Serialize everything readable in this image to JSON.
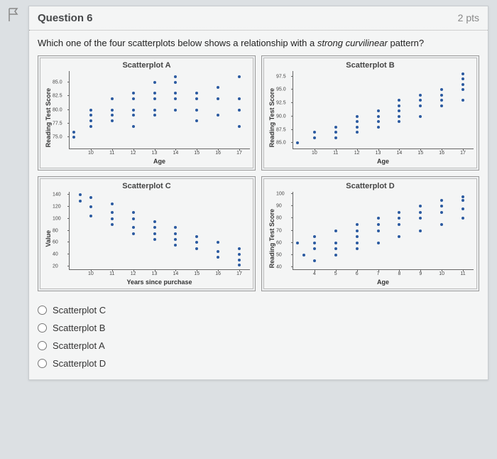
{
  "question": {
    "title": "Question 6",
    "points": "2 pts",
    "prompt_html": "Which one of the four scatterplots below shows a relationship with a <em>strong curvilinear</em> pattern?"
  },
  "point_color": "#2b5aa0",
  "plots": [
    {
      "title": "Scatterplot A",
      "ylabel": "Reading Test Score",
      "xlabel": "Age",
      "xlim": [
        9,
        17.5
      ],
      "ylim": [
        73,
        87
      ],
      "yticks": [
        75,
        77.5,
        80,
        82.5,
        85
      ],
      "ytick_labels": [
        "75.0",
        "77.5",
        "80.0",
        "82.5",
        "85.0"
      ],
      "xticks": [
        10,
        11,
        12,
        13,
        14,
        15,
        16,
        17
      ],
      "data": [
        [
          9.2,
          75
        ],
        [
          9.2,
          76
        ],
        [
          10,
          77
        ],
        [
          10,
          78
        ],
        [
          10,
          79
        ],
        [
          10,
          80
        ],
        [
          11,
          78
        ],
        [
          11,
          79
        ],
        [
          11,
          80
        ],
        [
          11,
          82
        ],
        [
          12,
          77
        ],
        [
          12,
          79
        ],
        [
          12,
          80
        ],
        [
          12,
          82
        ],
        [
          12,
          83
        ],
        [
          13,
          79
        ],
        [
          13,
          80
        ],
        [
          13,
          82
        ],
        [
          13,
          83
        ],
        [
          13,
          85
        ],
        [
          14,
          80
        ],
        [
          14,
          82
        ],
        [
          14,
          83
        ],
        [
          14,
          85
        ],
        [
          14,
          86
        ],
        [
          15,
          78
        ],
        [
          15,
          80
        ],
        [
          15,
          82
        ],
        [
          15,
          83
        ],
        [
          16,
          79
        ],
        [
          16,
          82
        ],
        [
          16,
          84
        ],
        [
          17,
          77
        ],
        [
          17,
          80
        ],
        [
          17,
          82
        ],
        [
          17,
          86
        ]
      ]
    },
    {
      "title": "Scatterplot B",
      "ylabel": "Reading Test Score",
      "xlabel": "Age",
      "xlim": [
        9,
        17.5
      ],
      "ylim": [
        84,
        98.5
      ],
      "yticks": [
        85,
        87.5,
        90,
        92.5,
        95,
        97.5
      ],
      "ytick_labels": [
        "85.0",
        "87.5",
        "90.0",
        "92.5",
        "95.0",
        "97.5"
      ],
      "xticks": [
        10,
        11,
        12,
        13,
        14,
        15,
        16,
        17
      ],
      "data": [
        [
          9.2,
          85
        ],
        [
          10,
          86
        ],
        [
          10,
          87
        ],
        [
          11,
          86
        ],
        [
          11,
          87
        ],
        [
          11,
          88
        ],
        [
          12,
          87
        ],
        [
          12,
          88
        ],
        [
          12,
          89
        ],
        [
          12,
          90
        ],
        [
          13,
          88
        ],
        [
          13,
          89
        ],
        [
          13,
          90
        ],
        [
          13,
          91
        ],
        [
          14,
          89
        ],
        [
          14,
          90
        ],
        [
          14,
          91
        ],
        [
          14,
          92
        ],
        [
          14,
          93
        ],
        [
          15,
          90
        ],
        [
          15,
          92
        ],
        [
          15,
          93
        ],
        [
          15,
          94
        ],
        [
          16,
          92
        ],
        [
          16,
          93
        ],
        [
          16,
          94
        ],
        [
          16,
          95
        ],
        [
          17,
          93
        ],
        [
          17,
          95
        ],
        [
          17,
          96
        ],
        [
          17,
          97
        ],
        [
          17,
          98
        ]
      ]
    },
    {
      "title": "Scatterplot C",
      "ylabel": "Value",
      "xlabel": "Years since purchase",
      "xlim": [
        9,
        17.5
      ],
      "ylim": [
        15,
        145
      ],
      "yticks": [
        20,
        40,
        60,
        80,
        100,
        120,
        140
      ],
      "ytick_labels": [
        "20",
        "40",
        "60",
        "80",
        "100",
        "120",
        "140"
      ],
      "xticks": [
        10,
        11,
        12,
        13,
        14,
        15,
        16,
        17
      ],
      "data": [
        [
          9.5,
          140
        ],
        [
          9.5,
          130
        ],
        [
          10,
          135
        ],
        [
          10,
          120
        ],
        [
          10,
          105
        ],
        [
          11,
          125
        ],
        [
          11,
          110
        ],
        [
          11,
          100
        ],
        [
          11,
          90
        ],
        [
          12,
          110
        ],
        [
          12,
          100
        ],
        [
          12,
          85
        ],
        [
          12,
          75
        ],
        [
          13,
          95
        ],
        [
          13,
          85
        ],
        [
          13,
          75
        ],
        [
          13,
          65
        ],
        [
          14,
          85
        ],
        [
          14,
          75
        ],
        [
          14,
          65
        ],
        [
          14,
          55
        ],
        [
          15,
          70
        ],
        [
          15,
          60
        ],
        [
          15,
          50
        ],
        [
          16,
          60
        ],
        [
          16,
          45
        ],
        [
          16,
          35
        ],
        [
          17,
          50
        ],
        [
          17,
          40
        ],
        [
          17,
          30
        ],
        [
          17,
          22
        ]
      ]
    },
    {
      "title": "Scatterplot D",
      "ylabel": "Reading Test Score",
      "xlabel": "Age",
      "xlim": [
        3,
        11.5
      ],
      "ylim": [
        38,
        102
      ],
      "yticks": [
        40,
        50,
        60,
        70,
        80,
        90,
        100
      ],
      "ytick_labels": [
        "40",
        "50",
        "60",
        "70",
        "80",
        "90",
        "100"
      ],
      "xticks": [
        4,
        5,
        6,
        7,
        8,
        9,
        10,
        11
      ],
      "data": [
        [
          3.2,
          60
        ],
        [
          3.5,
          50
        ],
        [
          4,
          55
        ],
        [
          4,
          60
        ],
        [
          4,
          65
        ],
        [
          4,
          45
        ],
        [
          5,
          55
        ],
        [
          5,
          60
        ],
        [
          5,
          70
        ],
        [
          5,
          50
        ],
        [
          6,
          55
        ],
        [
          6,
          60
        ],
        [
          6,
          65
        ],
        [
          6,
          70
        ],
        [
          6,
          75
        ],
        [
          7,
          60
        ],
        [
          7,
          70
        ],
        [
          7,
          75
        ],
        [
          7,
          80
        ],
        [
          8,
          65
        ],
        [
          8,
          75
        ],
        [
          8,
          80
        ],
        [
          8,
          85
        ],
        [
          9,
          70
        ],
        [
          9,
          80
        ],
        [
          9,
          85
        ],
        [
          9,
          90
        ],
        [
          10,
          75
        ],
        [
          10,
          85
        ],
        [
          10,
          90
        ],
        [
          10,
          95
        ],
        [
          11,
          80
        ],
        [
          11,
          88
        ],
        [
          11,
          95
        ],
        [
          11,
          98
        ]
      ]
    }
  ],
  "options": [
    "Scatterplot C",
    "Scatterplot B",
    "Scatterplot A",
    "Scatterplot D"
  ]
}
